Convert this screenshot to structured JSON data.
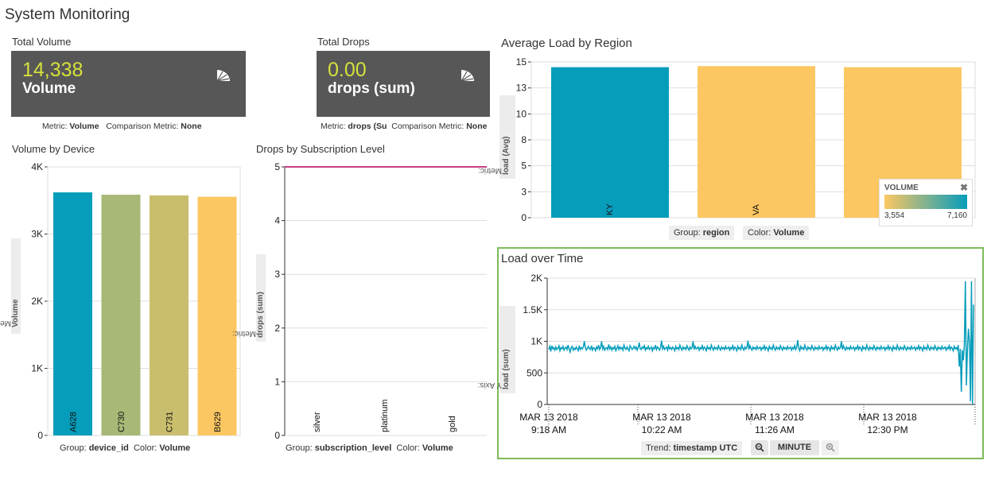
{
  "page": {
    "title": "System Monitoring"
  },
  "kpis": [
    {
      "title": "Total Volume",
      "value": "14,338",
      "label": "Volume",
      "metric_label": "Metric:",
      "metric_value": "Volume",
      "comparison_label": "Comparison Metric:",
      "comparison_value": "None",
      "icon": "pie-chart-icon"
    },
    {
      "title": "Total Drops",
      "value": "0.00",
      "label": "drops (sum)",
      "metric_label": "Metric:",
      "metric_value": "drops (Su",
      "comparison_label": "Comparison Metric:",
      "comparison_value": "None",
      "icon": "pie-chart-icon"
    }
  ],
  "panels": {
    "volume_by_device": {
      "title": "Volume by Device",
      "group_label": "Group:",
      "group_value": "device_id",
      "color_label": "Color:",
      "color_value": "Volume",
      "yaxis_tab_label": "Metric:",
      "yaxis_tab_value": "Volume"
    },
    "drops_by_sub": {
      "title": "Drops by Subscription Level",
      "group_label": "Group:",
      "group_value": "subscription_level",
      "color_label": "Color:",
      "color_value": "Volume",
      "yaxis_tab_label": "Metric:",
      "yaxis_tab_value": "drops (sum)"
    },
    "avg_load_region": {
      "title": "Average Load by Region",
      "group_label": "Group:",
      "group_value": "region",
      "color_label": "Color:",
      "color_value": "Volume",
      "yaxis_tab_label": "Metric:",
      "yaxis_tab_value": "load (Avg)",
      "legend": {
        "title": "VOLUME",
        "close": "✖",
        "min": "3,554",
        "max": "7,160",
        "color_low": "#fcc762",
        "color_high": "#069dbb"
      }
    },
    "load_over_time": {
      "title": "Load over Time",
      "yaxis_tab_label": "Y Axis:",
      "yaxis_tab_value": "load (sum)",
      "trend_label": "Trend:",
      "trend_value": "timestamp UTC",
      "interval_label": "MINUTE",
      "zoom_out_icon": "zoom-out-icon",
      "zoom_in_icon": "zoom-in-icon",
      "border_color": "#7dbb5a"
    }
  },
  "colors": {
    "teal": "#069dbb",
    "olive_green": "#a7b877",
    "khaki": "#c9be6d",
    "amber": "#fcc762",
    "magenta": "#c93f82",
    "kpi_bg": "#575757",
    "kpi_value": "#d5e13a"
  },
  "chart_data": [
    {
      "id": "volume_by_device",
      "type": "bar",
      "categories": [
        "A628",
        "C730",
        "C731",
        "B629"
      ],
      "values": [
        3620,
        3585,
        3575,
        3555
      ],
      "colors": [
        "#069dbb",
        "#a7b877",
        "#c9be6d",
        "#fcc762"
      ],
      "ylim": [
        0,
        4000
      ],
      "yticks": [
        "0",
        "1K",
        "2K",
        "3K",
        "4K"
      ],
      "ytick_values": [
        0,
        1000,
        2000,
        3000,
        4000
      ],
      "grid": true
    },
    {
      "id": "drops_by_sub",
      "type": "bar",
      "categories": [
        "silver",
        "platinum",
        "gold"
      ],
      "values": [
        0,
        0,
        0
      ],
      "ylim": [
        0,
        5
      ],
      "yticks": [
        "0",
        "1",
        "2",
        "3",
        "4",
        "5"
      ],
      "ytick_values": [
        0,
        1,
        2,
        3,
        4,
        5
      ],
      "reference_line": 5,
      "grid": true
    },
    {
      "id": "avg_load_region",
      "type": "bar",
      "categories": [
        "KY",
        "VA",
        ""
      ],
      "values": [
        14.5,
        14.6,
        14.5
      ],
      "colors": [
        "#069dbb",
        "#fcc762",
        "#fcc762"
      ],
      "ylim": [
        0,
        15
      ],
      "yticks": [
        "0",
        "3",
        "5",
        "8",
        "10",
        "13",
        "15"
      ],
      "ytick_values": [
        0,
        2.5,
        5,
        7.5,
        10,
        12.5,
        15
      ],
      "grid": true
    },
    {
      "id": "load_over_time",
      "type": "line",
      "xticks": [
        [
          "MAR 13 2018",
          "9:18 AM"
        ],
        [
          "MAR 13 2018",
          "10:22 AM"
        ],
        [
          "MAR 13 2018",
          "11:26 AM"
        ],
        [
          "MAR 13 2018",
          "12:30 PM"
        ]
      ],
      "ylim": [
        0,
        2000
      ],
      "yticks": [
        "0",
        "500",
        "1K",
        "1.5K",
        "2K"
      ],
      "ytick_values": [
        0,
        500,
        1000,
        1500,
        2000
      ],
      "grid": true,
      "series": [
        {
          "color": "#069dbb",
          "values": [
            870,
            920,
            840,
            930,
            880,
            900,
            860,
            910,
            870,
            890,
            930,
            850,
            900,
            880,
            920,
            860,
            890,
            910,
            870,
            940,
            880,
            830,
            900,
            920,
            860,
            890,
            870,
            910,
            880,
            850,
            930,
            870,
            900,
            880,
            910,
            1000,
            900,
            860,
            890,
            920,
            880,
            870,
            930,
            860,
            900,
            890,
            850,
            910,
            880,
            940,
            870,
            900,
            1000,
            880,
            920,
            860,
            890,
            900,
            870,
            950,
            880,
            910,
            860,
            900,
            880,
            920,
            850,
            890,
            930,
            870,
            910,
            880,
            900,
            860,
            940,
            890,
            870,
            910,
            880,
            850,
            930,
            900,
            870,
            890,
            920,
            880,
            910,
            860,
            900,
            980,
            880,
            870,
            910,
            890,
            930,
            860,
            900,
            880,
            920,
            870,
            890,
            910,
            850,
            900,
            880,
            940,
            870,
            910,
            890,
            860,
            900,
            1010,
            880,
            920,
            870,
            890,
            910,
            860,
            930,
            880,
            900,
            870,
            910,
            890,
            850,
            920,
            880,
            900,
            870,
            940,
            890,
            860,
            910,
            880,
            900,
            870,
            930,
            890,
            860,
            910,
            880,
            900,
            1000,
            870,
            920,
            880,
            890,
            910,
            860,
            900,
            880,
            930,
            870,
            910,
            890,
            850,
            920,
            880,
            900,
            870,
            940,
            890,
            860,
            910,
            880,
            900,
            870,
            930,
            890,
            860,
            910,
            880,
            900,
            870,
            920,
            880,
            890,
            910,
            860,
            900,
            880,
            930,
            870,
            910,
            890,
            850,
            920,
            880,
            900,
            870,
            940,
            890,
            860,
            910,
            880,
            900,
            1010,
            870,
            930,
            890,
            860,
            910,
            880,
            900,
            870,
            920,
            880,
            890,
            910,
            860,
            900,
            880,
            930,
            870,
            910,
            890,
            850,
            920,
            880,
            900,
            870,
            940,
            890,
            860,
            910,
            880,
            900,
            870,
            930,
            890,
            860,
            910,
            880,
            900,
            870,
            920,
            880,
            890,
            910,
            860,
            900,
            880,
            930,
            870,
            910,
            1020,
            890,
            850,
            920,
            880,
            900,
            870,
            940,
            890,
            860,
            910,
            880,
            900,
            870,
            930,
            890,
            860,
            910,
            880,
            900,
            870,
            920,
            880,
            890,
            910,
            860,
            900,
            880,
            930,
            870,
            910,
            890,
            850,
            920,
            880,
            900,
            870,
            940,
            890,
            860,
            910,
            880,
            900,
            1000,
            870,
            930,
            890,
            860,
            910,
            880,
            900,
            870,
            920,
            880,
            890,
            910,
            860,
            900,
            880,
            930,
            870,
            910,
            890,
            850,
            920,
            880,
            900,
            870,
            940,
            890,
            860,
            910,
            880,
            900,
            870,
            930,
            890,
            860,
            910,
            880,
            900,
            870,
            920,
            880,
            890,
            910,
            860,
            900,
            880,
            930,
            870,
            910,
            890,
            850,
            920,
            880,
            900,
            870,
            940,
            890,
            860,
            910,
            880,
            900,
            870,
            930,
            890,
            860,
            910,
            880,
            900,
            870,
            920,
            880,
            890,
            910,
            860,
            900,
            880,
            930,
            870,
            910,
            890,
            850,
            920,
            880,
            900,
            870,
            940,
            890,
            860,
            910,
            880,
            900,
            870,
            930,
            890,
            860,
            910,
            880,
            900,
            870,
            920,
            880,
            890,
            910,
            860,
            900,
            880,
            930,
            870,
            910,
            890,
            850,
            920,
            880,
            900,
            870,
            940,
            600,
            880,
            200,
            860,
            700,
            950,
            1950,
            300,
            850,
            1200,
            1000,
            50,
            1950,
            0,
            1580
          ]
        }
      ]
    }
  ]
}
